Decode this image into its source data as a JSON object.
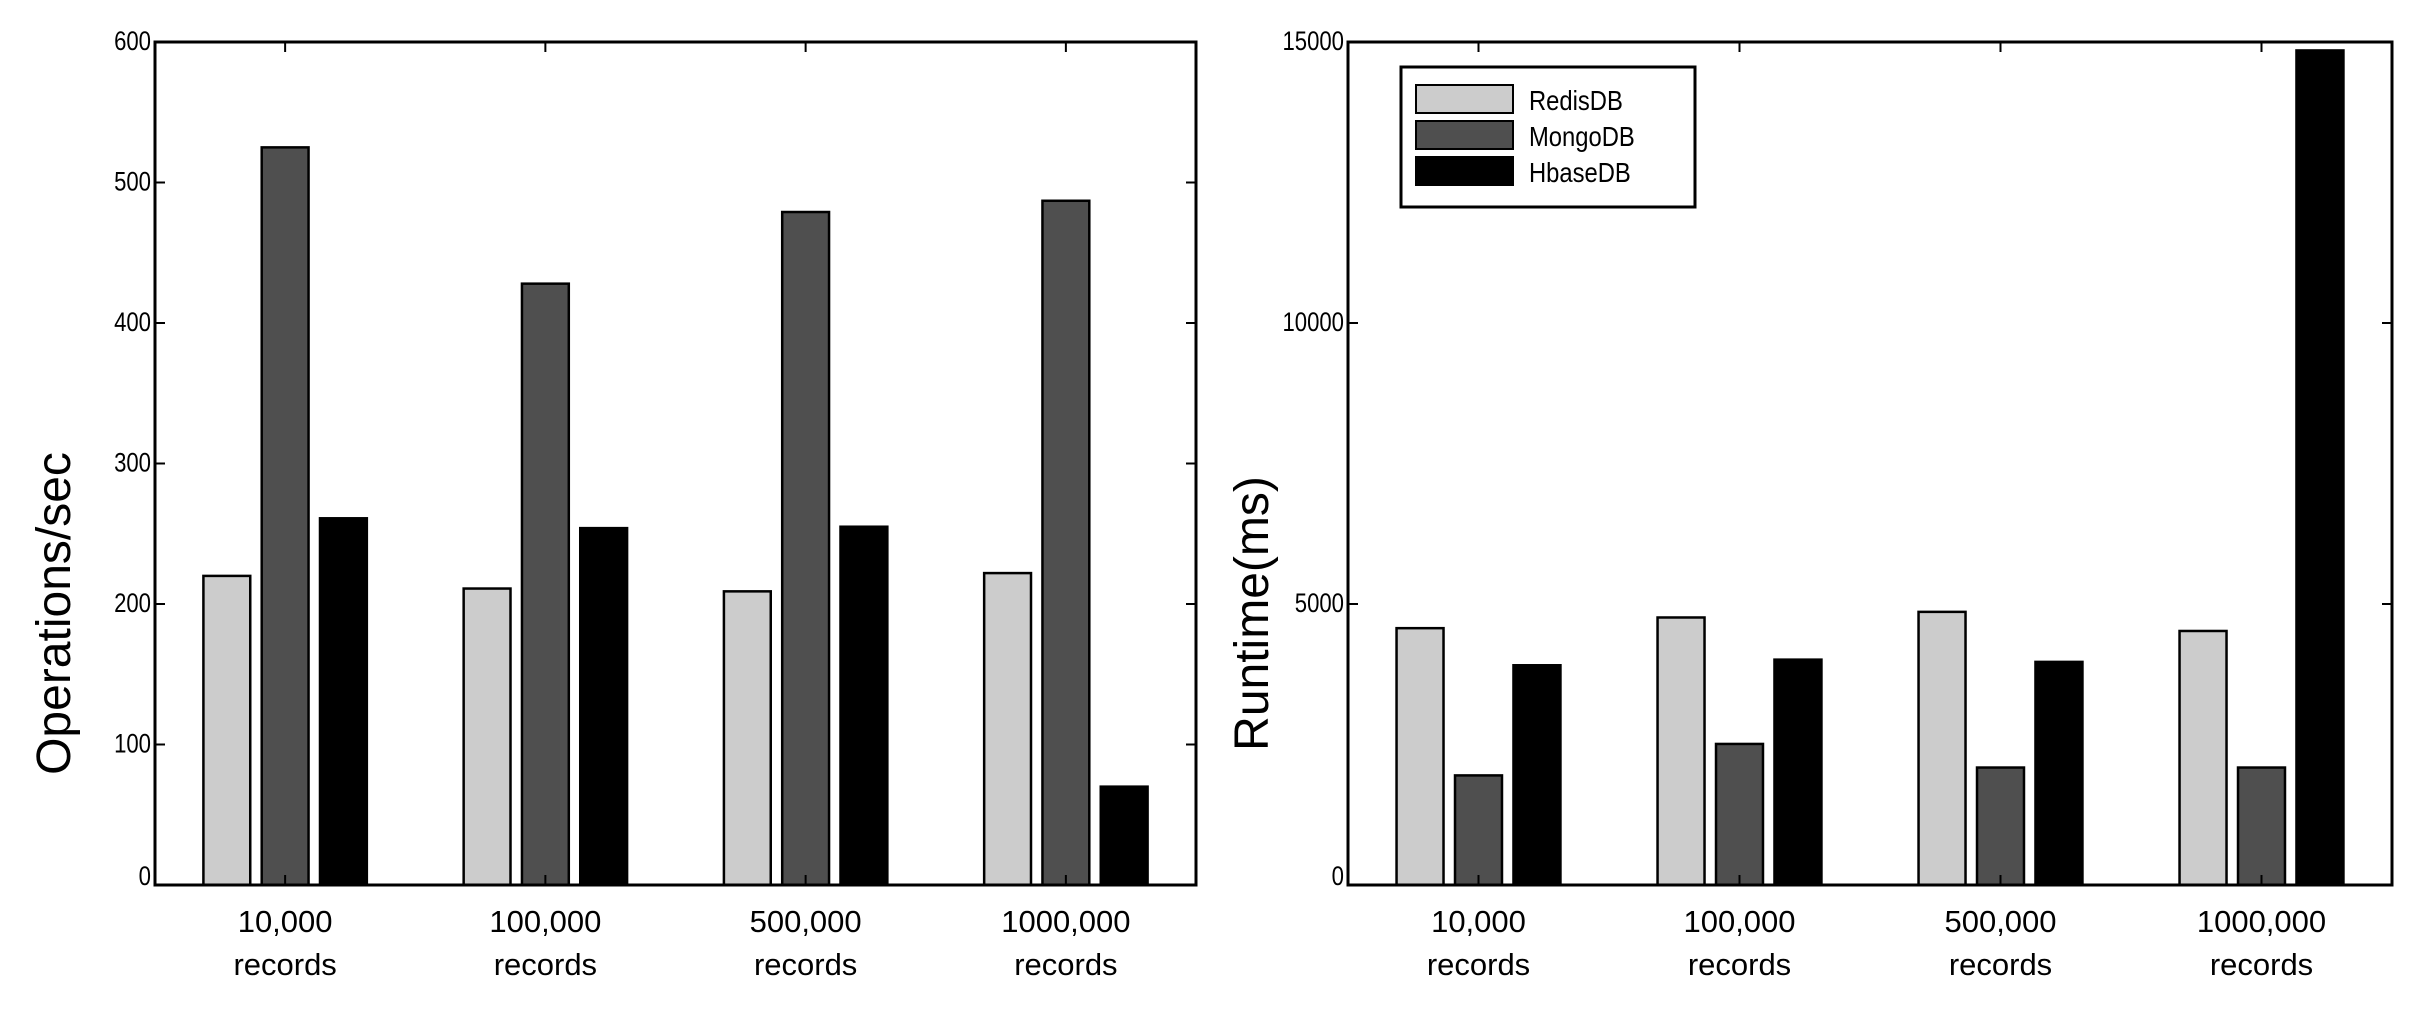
{
  "colors": {
    "RedisDB": "#cccccc",
    "MongoDB": "#4f4f4f",
    "HbaseDB": "#000000"
  },
  "chart_data": [
    {
      "type": "bar",
      "title": "",
      "xlabel": "",
      "ylabel": "Operations/sec",
      "ylim": [
        0,
        600
      ],
      "yticks": [
        0,
        100,
        200,
        300,
        400,
        500,
        600
      ],
      "categories": [
        [
          "10,000",
          "records"
        ],
        [
          "100,000",
          "records"
        ],
        [
          "500,000",
          "records"
        ],
        [
          "1000,000",
          "records"
        ]
      ],
      "legend": null,
      "series": [
        {
          "name": "RedisDB",
          "values": [
            220,
            211,
            209,
            222
          ]
        },
        {
          "name": "MongoDB",
          "values": [
            525,
            428,
            479,
            487
          ]
        },
        {
          "name": "HbaseDB",
          "values": [
            261,
            254,
            255,
            70
          ]
        }
      ]
    },
    {
      "type": "bar",
      "title": "",
      "xlabel": "",
      "ylabel": "Runtime(ms)",
      "ylim": [
        0,
        15000
      ],
      "yticks": [
        0,
        5000,
        10000,
        15000
      ],
      "categories": [
        [
          "10,000",
          "records"
        ],
        [
          "100,000",
          "records"
        ],
        [
          "500,000",
          "records"
        ],
        [
          "1000,000",
          "records"
        ]
      ],
      "legend": "top-left",
      "series": [
        {
          "name": "RedisDB",
          "values": [
            4570,
            4760,
            4860,
            4520
          ]
        },
        {
          "name": "MongoDB",
          "values": [
            1950,
            2510,
            2090,
            2090
          ]
        },
        {
          "name": "HbaseDB",
          "values": [
            3910,
            4010,
            3970,
            14850
          ]
        }
      ]
    }
  ]
}
